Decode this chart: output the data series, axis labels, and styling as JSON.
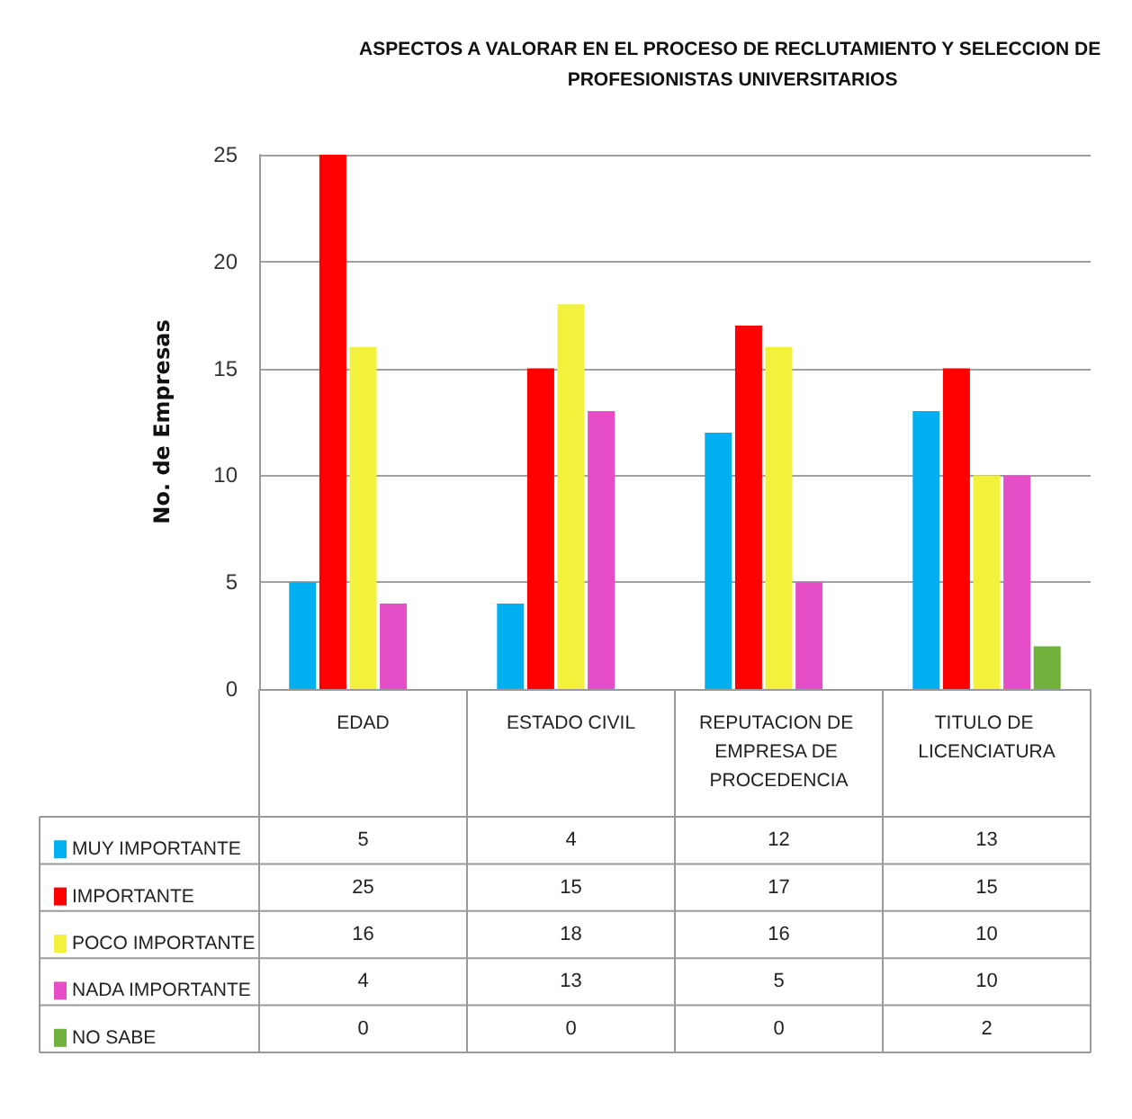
{
  "chart_data": {
    "type": "bar",
    "title": "ASPECTOS A VALORAR EN EL PROCESO DE RECLUTAMIENTO Y SELECCION DE PROFESIONISTAS UNIVERSITARIOS",
    "ylabel": "No. de Empresas",
    "categories": [
      "EDAD",
      "ESTADO CIVIL",
      "REPUTACION DE EMPRESA DE PROCEDENCIA",
      "TITULO DE LICENCIATURA"
    ],
    "series": [
      {
        "name": "MUY IMPORTANTE",
        "color": "#00b0f0",
        "values": [
          5,
          4,
          12,
          13
        ]
      },
      {
        "name": "IMPORTANTE",
        "color": "#ff0000",
        "values": [
          25,
          15,
          17,
          15
        ]
      },
      {
        "name": "POCO IMPORTANTE",
        "color": "#f2f23c",
        "values": [
          16,
          18,
          16,
          10
        ]
      },
      {
        "name": "NADA IMPORTANTE",
        "color": "#e64ec8",
        "values": [
          4,
          13,
          5,
          10
        ]
      },
      {
        "name": "NO SABE",
        "color": "#72b03c",
        "values": [
          0,
          0,
          0,
          2
        ]
      }
    ],
    "ylim": [
      0,
      25
    ],
    "yticks": [
      0,
      5,
      10,
      15,
      20,
      25
    ],
    "grid": "y",
    "legend": "bottom left",
    "data_labels": true
  }
}
